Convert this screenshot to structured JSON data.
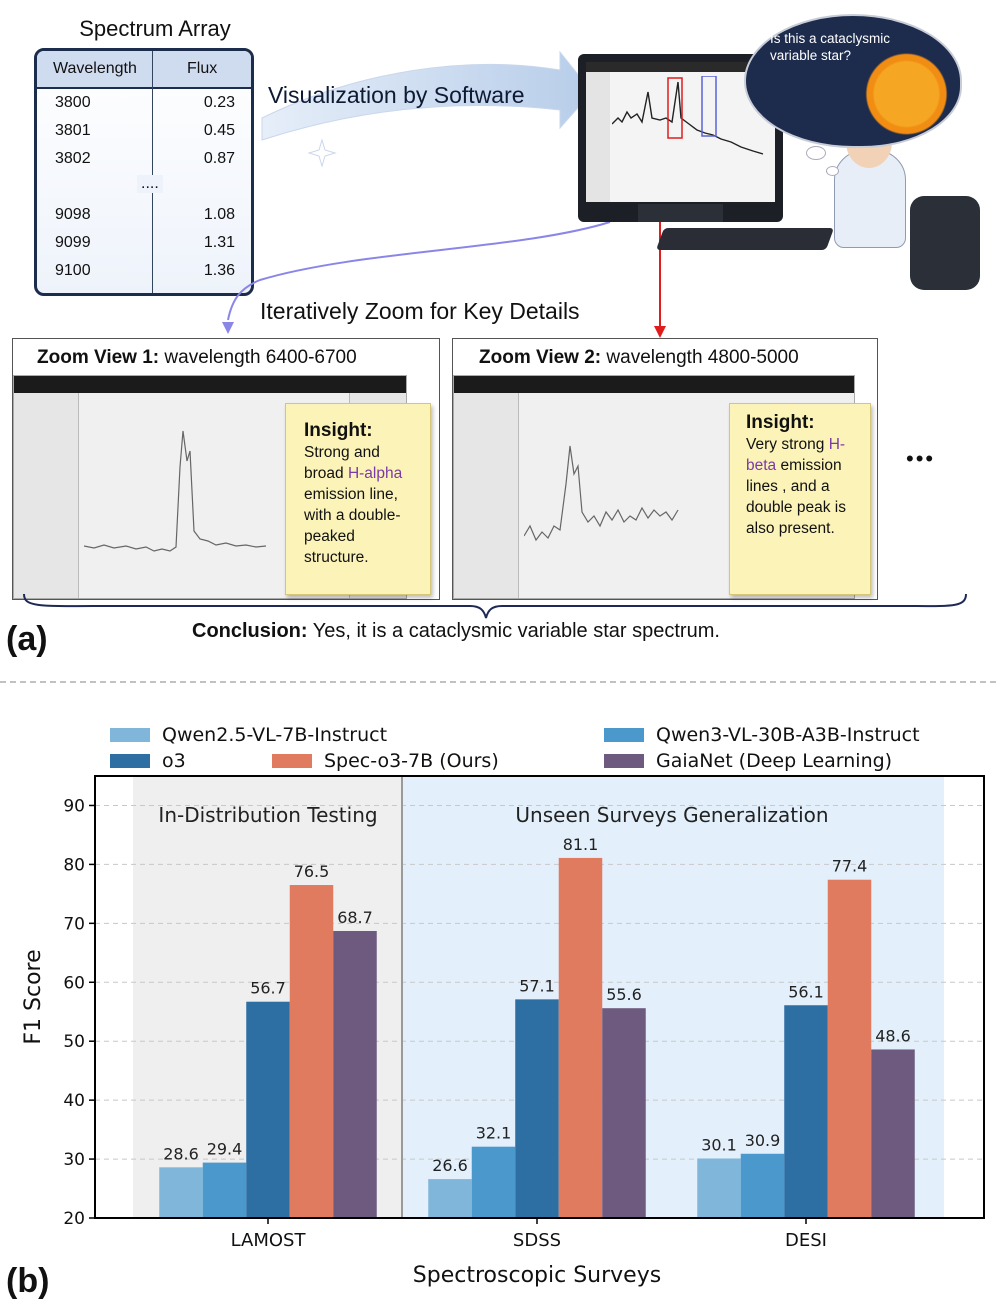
{
  "part_a": {
    "label": "(a)",
    "table_title": "Spectrum Array",
    "table_headers": [
      "Wavelength",
      "Flux"
    ],
    "table_rows": [
      {
        "w": "3800",
        "f": "0.23"
      },
      {
        "w": "3801",
        "f": "0.45"
      },
      {
        "w": "3802",
        "f": "0.87"
      },
      {
        "w": "....",
        "f": ""
      },
      {
        "w": "9098",
        "f": "1.08"
      },
      {
        "w": "9099",
        "f": "1.31"
      },
      {
        "w": "9100",
        "f": "1.36"
      }
    ],
    "viz_label": "Visualization by Software",
    "thought": "Is this a cataclysmic variable star?",
    "zoom_label": "Iteratively Zoom for Key Details",
    "zoom1": {
      "title_bold": "Zoom View 1:",
      "title_rest": " wavelength 6400-6700",
      "insight_title": "Insight:",
      "insight_pre": "Strong and broad ",
      "insight_hl": "H-alpha",
      "insight_post": " emission line, with a double-peaked structure."
    },
    "zoom2": {
      "title_bold": "Zoom View 2:",
      "title_rest": " wavelength 4800-5000",
      "insight_title": "Insight:",
      "insight_pre": "Very strong ",
      "insight_hl": "H-beta",
      "insight_post": " emission lines , and a double peak is also present."
    },
    "ellipsis": "•••",
    "conclusion_bold": "Conclusion:",
    "conclusion_rest": " Yes, it is a cataclysmic variable star spectrum."
  },
  "part_b": {
    "label": "(b)"
  },
  "colors": {
    "qwen25": "#7fb6da",
    "o3": "#2d6ea3",
    "spec": "#e07b5f",
    "qwen3": "#4b98cc",
    "gaia": "#6e5a7e",
    "in_dist_bg": "#efefef",
    "unseen_bg": "#e3f0fb"
  },
  "chart_data": {
    "type": "bar",
    "xlabel": "Spectroscopic Surveys",
    "ylabel": "F1 Score",
    "ylim": [
      20,
      95
    ],
    "yticks": [
      20,
      30,
      40,
      50,
      60,
      70,
      80,
      90
    ],
    "categories": [
      "LAMOST",
      "SDSS",
      "DESI"
    ],
    "region_labels": [
      "In-Distribution Testing",
      "Unseen Surveys Generalization"
    ],
    "legend": [
      "Qwen2.5-VL-7B-Instruct",
      "Qwen3-VL-30B-A3B-Instruct",
      "o3",
      "Spec-o3-7B (Ours)",
      "GaiaNet (Deep Learning)"
    ],
    "series": [
      {
        "name": "Qwen2.5-VL-7B-Instruct",
        "color_key": "qwen25",
        "values": [
          28.6,
          26.6,
          30.1
        ]
      },
      {
        "name": "Qwen3-VL-30B-A3B-Instruct",
        "color_key": "qwen3",
        "values": [
          29.4,
          32.1,
          30.9
        ]
      },
      {
        "name": "o3",
        "color_key": "o3",
        "values": [
          56.7,
          57.1,
          56.1
        ]
      },
      {
        "name": "Spec-o3-7B (Ours)",
        "color_key": "spec",
        "values": [
          76.5,
          81.1,
          77.4
        ]
      },
      {
        "name": "GaiaNet (Deep Learning)",
        "color_key": "gaia",
        "values": [
          68.7,
          55.6,
          48.6
        ]
      }
    ]
  }
}
